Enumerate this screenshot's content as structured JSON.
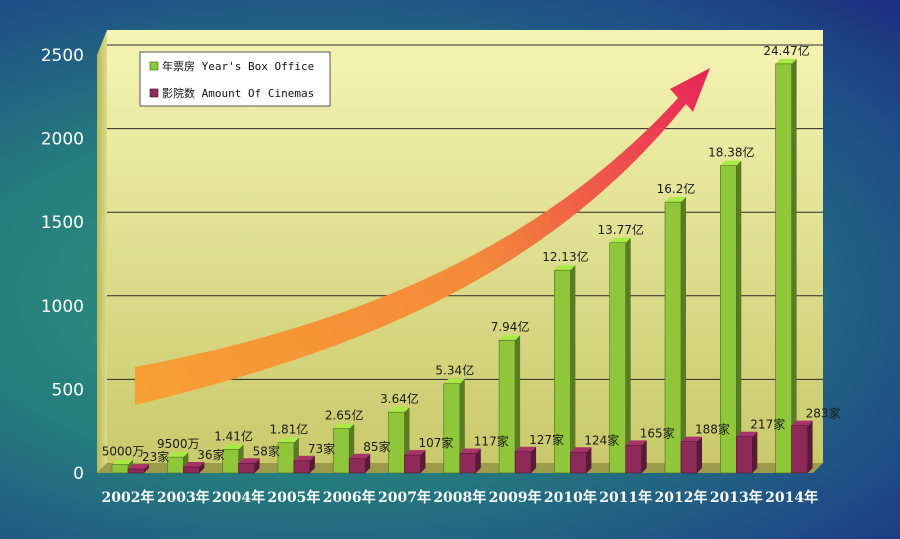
{
  "chart_data": {
    "type": "bar",
    "categories": [
      "2002年",
      "2003年",
      "2004年",
      "2005年",
      "2006年",
      "2007年",
      "2008年",
      "2009年",
      "2010年",
      "2011年",
      "2012年",
      "2013年",
      "2014年"
    ],
    "series": [
      {
        "name": "年票房 Year's Box Office",
        "values": [
          50,
          95,
          141,
          181,
          265,
          364,
          534,
          794,
          1213,
          1377,
          1620,
          1838,
          2447
        ],
        "labels": [
          "5000万",
          "9500万",
          "1.41亿",
          "1.81亿",
          "2.65亿",
          "3.64亿",
          "5.34亿",
          "7.94亿",
          "12.13亿",
          "13.77亿",
          "16.2亿",
          "18.38亿",
          "24.47亿"
        ],
        "color": "#8fc63a"
      },
      {
        "name": "影院数 Amount Of Cinemas",
        "values": [
          23,
          36,
          58,
          73,
          85,
          107,
          117,
          127,
          124,
          165,
          188,
          217,
          283
        ],
        "labels": [
          "23家",
          "36家",
          "58家",
          "73家",
          "85家",
          "107家",
          "117家",
          "127家",
          "124家",
          "165家",
          "188家",
          "217家",
          "283家"
        ],
        "color": "#8e2a5a"
      }
    ],
    "ylim": [
      0,
      2500
    ],
    "yticks": [
      "0",
      "500",
      "1000",
      "1500",
      "2000",
      "2500"
    ],
    "legend_position": "top-left",
    "grid": true,
    "annotation": "growth-arrow"
  }
}
